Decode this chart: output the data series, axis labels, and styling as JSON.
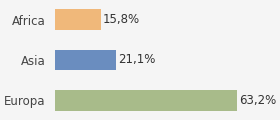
{
  "categories": [
    "Africa",
    "Asia",
    "Europa"
  ],
  "values": [
    15.8,
    21.1,
    63.2
  ],
  "labels": [
    "15,8%",
    "21,1%",
    "63,2%"
  ],
  "bar_colors": [
    "#f0b87a",
    "#6a8dbf",
    "#a8bb8a"
  ],
  "xlim": [
    0,
    75
  ],
  "bar_height": 0.52,
  "background_color": "#f5f5f5",
  "label_fontsize": 8.5,
  "tick_fontsize": 8.5
}
